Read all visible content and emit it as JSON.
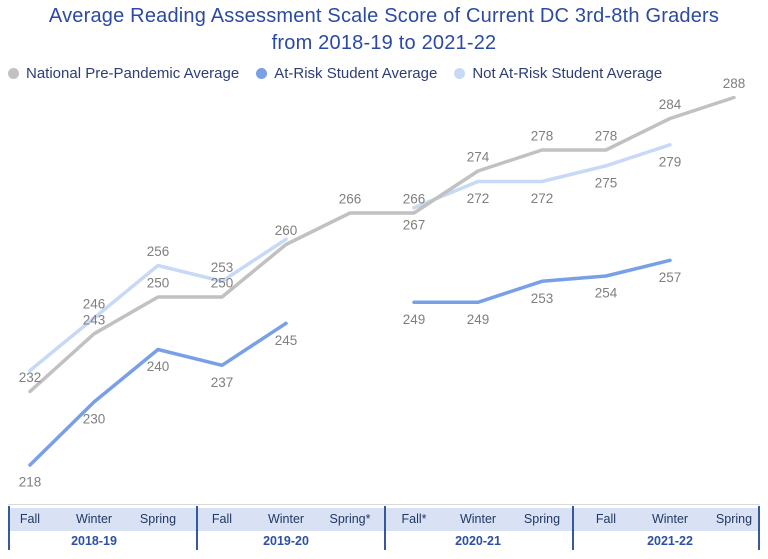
{
  "title": {
    "line1": "Average Reading Assessment Scale Score of Current DC 3rd-8th Graders",
    "line2": "from 2018-19 to 2021-22"
  },
  "colors": {
    "title_text": "#2b4aa3",
    "legend_text": "#2c3e75",
    "data_label": "#7f7f7f",
    "season_text": "#1f3864",
    "year_text": "#2b50a5",
    "band_bg": "#d9e2f4",
    "divider": "#35599f",
    "axis_line": "#d8d8d8",
    "national_line": "#c1c1c1",
    "at_risk_line": "#79a0e7",
    "not_at_risk_line": "#c7d9f5"
  },
  "legend": {
    "items": [
      {
        "label": "National Pre-Pandemic Average",
        "color": "#c1c1c1",
        "name": "national-pre-pandemic"
      },
      {
        "label": "At-Risk Student Average",
        "color": "#79a0e7",
        "name": "at-risk"
      },
      {
        "label": "Not At-Risk Student Average",
        "color": "#c7d9f5",
        "name": "not-at-risk"
      }
    ]
  },
  "chart_data": {
    "type": "line",
    "title": "Average Reading Assessment Scale Score of Current DC 3rd-8th Graders from 2018-19 to 2021-22",
    "legend_position": "top",
    "grid": false,
    "y_axis_shown": false,
    "ylim": [
      210,
      292
    ],
    "categories": [
      "Fall 2018-19",
      "Winter 2018-19",
      "Spring 2018-19",
      "Fall 2019-20",
      "Winter 2019-20",
      "Spring* 2019-20",
      "Fall* 2020-21",
      "Winter 2020-21",
      "Spring 2020-21",
      "Fall 2021-22",
      "Winter 2021-22",
      "Spring 2021-22"
    ],
    "x_groups": [
      {
        "year": "2018-19",
        "seasons": [
          "Fall",
          "Winter",
          "Spring"
        ]
      },
      {
        "year": "2019-20",
        "seasons": [
          "Fall",
          "Winter",
          "Spring*"
        ]
      },
      {
        "year": "2020-21",
        "seasons": [
          "Fall*",
          "Winter",
          "Spring"
        ]
      },
      {
        "year": "2021-22",
        "seasons": [
          "Fall",
          "Winter",
          "Spring"
        ]
      }
    ],
    "series": [
      {
        "name": "National Pre-Pandemic Average",
        "color": "#c1c1c1",
        "values": [
          232,
          243,
          250,
          250,
          260,
          266,
          266,
          274,
          278,
          278,
          284,
          288
        ],
        "labels": [
          "232",
          "243",
          "250",
          "250",
          "260",
          "266",
          "266",
          "274",
          "278",
          "278",
          "284",
          "288"
        ],
        "label_side": [
          "above",
          "above",
          "above",
          "above",
          "above",
          "above",
          "above",
          "above",
          "above",
          "above",
          "above",
          "above"
        ]
      },
      {
        "name": "At-Risk Student Average",
        "color": "#79a0e7",
        "values": [
          218,
          230,
          240,
          237,
          245,
          null,
          249,
          249,
          253,
          254,
          257,
          null
        ],
        "labels": [
          "218",
          "230",
          "240",
          "237",
          "245",
          null,
          "249",
          "249",
          "253",
          "254",
          "257",
          null
        ],
        "label_side": [
          "below",
          "below",
          "below",
          "below",
          "below",
          null,
          "below",
          "below",
          "below",
          "below",
          "below",
          null
        ]
      },
      {
        "name": "Not At-Risk Student Average",
        "color": "#c7d9f5",
        "values": [
          236,
          246,
          256,
          253,
          261,
          null,
          267,
          272,
          272,
          275,
          279,
          null
        ],
        "labels": [
          null,
          "246",
          "256",
          "253",
          null,
          null,
          "267",
          "272",
          "272",
          "275",
          "279",
          null
        ],
        "label_side": [
          null,
          "above",
          "above",
          "above",
          null,
          null,
          "below",
          "below",
          "below",
          "below",
          "below",
          null
        ]
      }
    ]
  }
}
